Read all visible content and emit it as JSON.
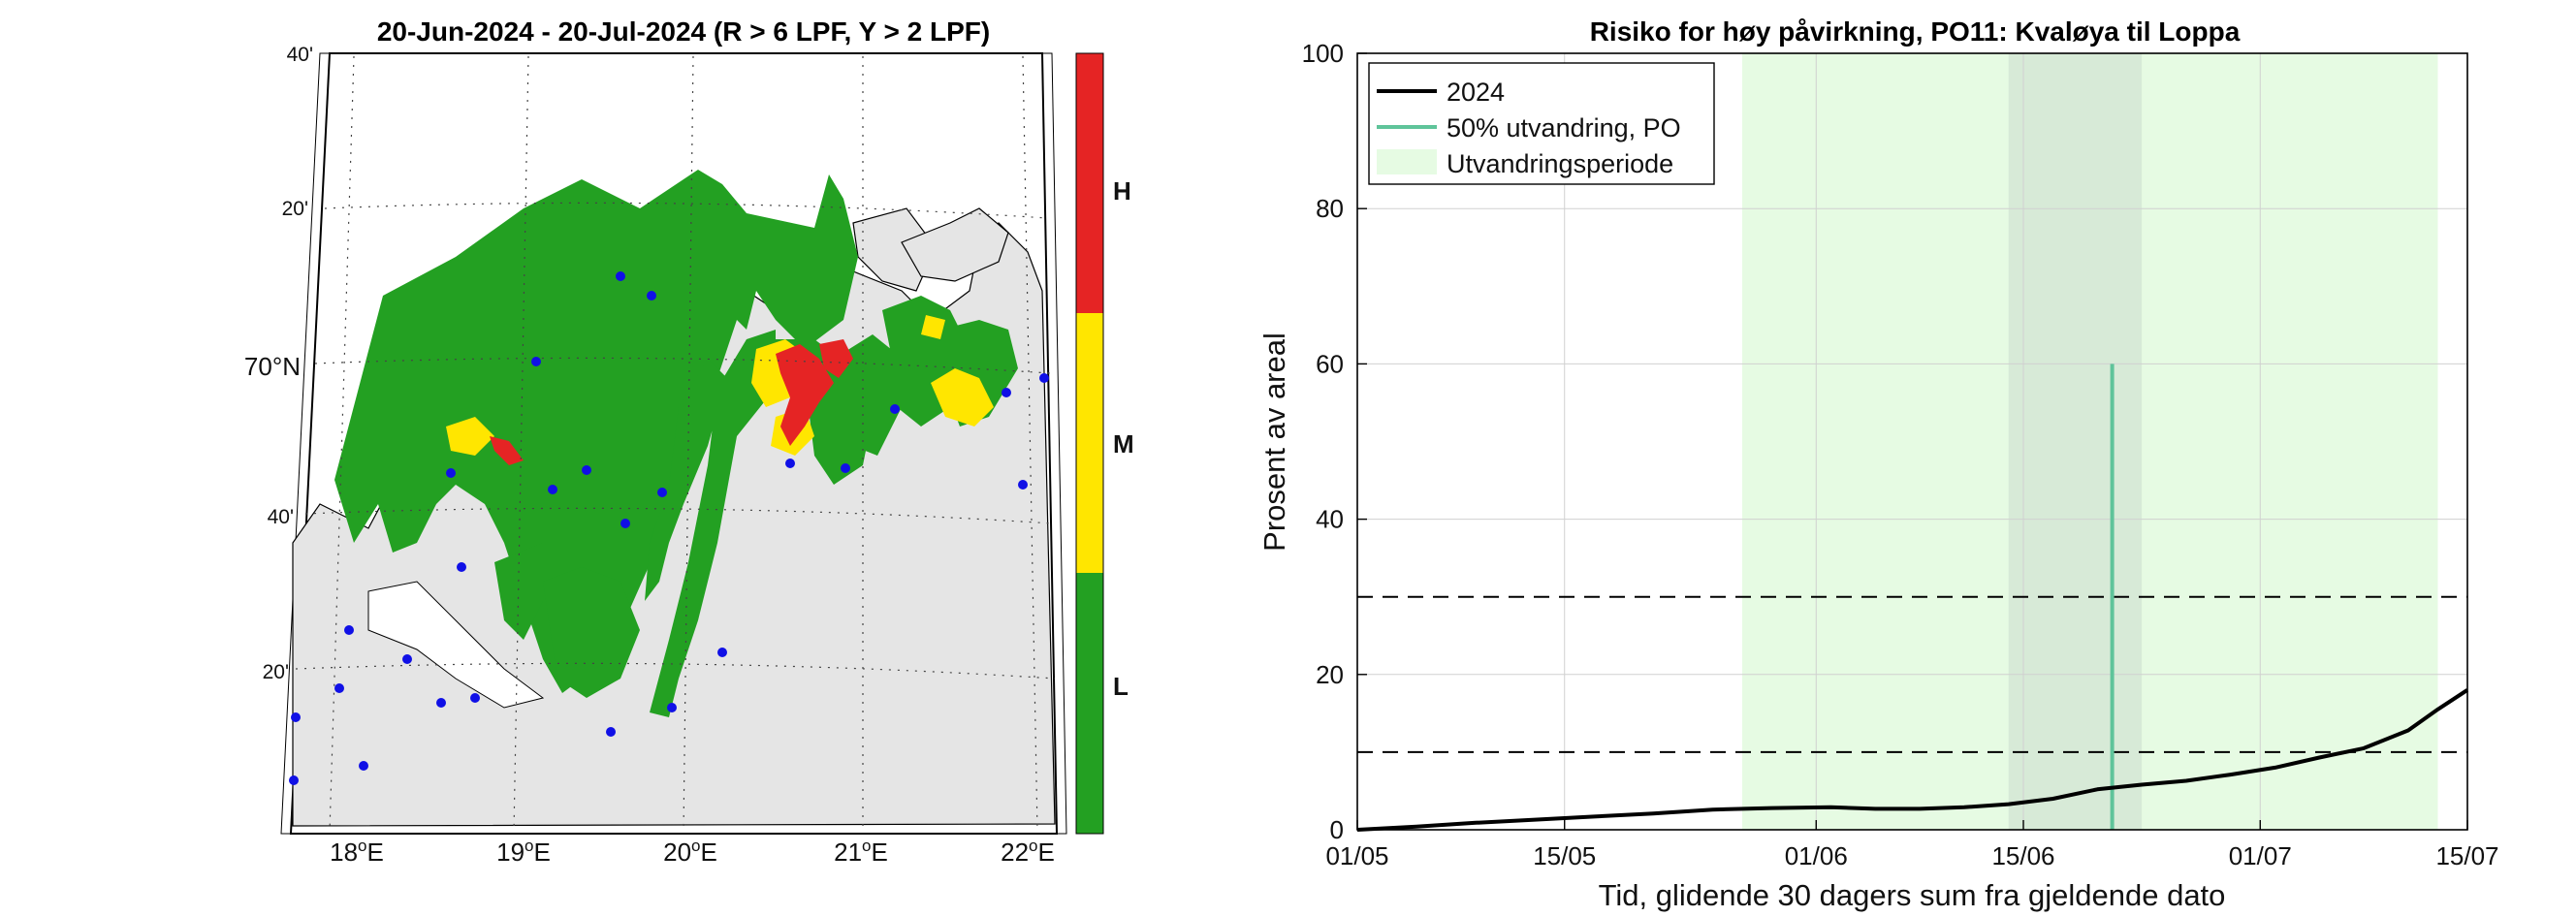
{
  "colors": {
    "risk_high": "#e52424",
    "risk_medium": "#ffe600",
    "risk_low": "#23a022",
    "land": "#e5e5e5",
    "station": "#1010e6",
    "line_2024": "#000000",
    "po_line": "#5fc49a",
    "period_fill": "#e6fbe3",
    "period_overlap": "#d7ead7"
  },
  "map": {
    "title": "20-Jun-2024  - 20-Jul-2024  (R > 6 LPF, Y > 2 LPF)",
    "lat_labels": [
      "40'",
      "20'",
      "70°N",
      "40'",
      "20'"
    ],
    "lon_labels": [
      {
        "deg": "18",
        "suffix": "E"
      },
      {
        "deg": "19",
        "suffix": "E"
      },
      {
        "deg": "20",
        "suffix": "E"
      },
      {
        "deg": "21",
        "suffix": "E"
      },
      {
        "deg": "22",
        "suffix": "E"
      }
    ],
    "colorbar": [
      {
        "level": "H",
        "color": "#e52424"
      },
      {
        "level": "M",
        "color": "#ffe600"
      },
      {
        "level": "L",
        "color": "#23a022"
      }
    ]
  },
  "chart_data": {
    "type": "line",
    "title": "Risiko for høy påvirkning, PO11: Kvaløya til Loppa",
    "xlabel": "Tid, glidende 30 dagers sum fra gjeldende dato",
    "ylabel": "Prosent av areal",
    "x_start": "01/05",
    "x_end": "15/07",
    "x_ticks": [
      "01/05",
      "15/05",
      "01/06",
      "15/06",
      "01/07",
      "15/07"
    ],
    "ylim": [
      0,
      100
    ],
    "y_ticks": [
      0,
      20,
      40,
      60,
      80,
      100
    ],
    "grid": true,
    "legend_position": "top-left",
    "legend": [
      "2024",
      "50% utvandring, PO",
      "Utvandringsperiode"
    ],
    "series": [
      {
        "name": "2024",
        "x": [
          "01/05",
          "05/05",
          "09/05",
          "13/05",
          "17/05",
          "21/05",
          "25/05",
          "29/05",
          "02/06",
          "05/06",
          "08/06",
          "11/06",
          "14/06",
          "17/06",
          "20/06",
          "23/06",
          "26/06",
          "29/06",
          "02/07",
          "05/07",
          "08/07",
          "11/07",
          "13/07",
          "15/07"
        ],
        "y": [
          0,
          0.4,
          0.9,
          1.3,
          1.7,
          2.1,
          2.6,
          2.8,
          2.9,
          2.7,
          2.7,
          2.9,
          3.3,
          4.0,
          5.2,
          5.8,
          6.3,
          7.1,
          8.0,
          9.3,
          10.5,
          12.8,
          15.5,
          18.0
        ]
      }
    ],
    "reference_lines": [
      {
        "type": "dashed",
        "y": 10
      },
      {
        "type": "dashed",
        "y": 30
      }
    ],
    "po_50pct_line": {
      "x": "21/06",
      "y_from": 0,
      "y_to": 60
    },
    "migration_period": {
      "x_from": "27/05",
      "x_to": "13/07"
    },
    "migration_overlap": {
      "x_from": "14/06",
      "x_to": "23/06"
    }
  }
}
